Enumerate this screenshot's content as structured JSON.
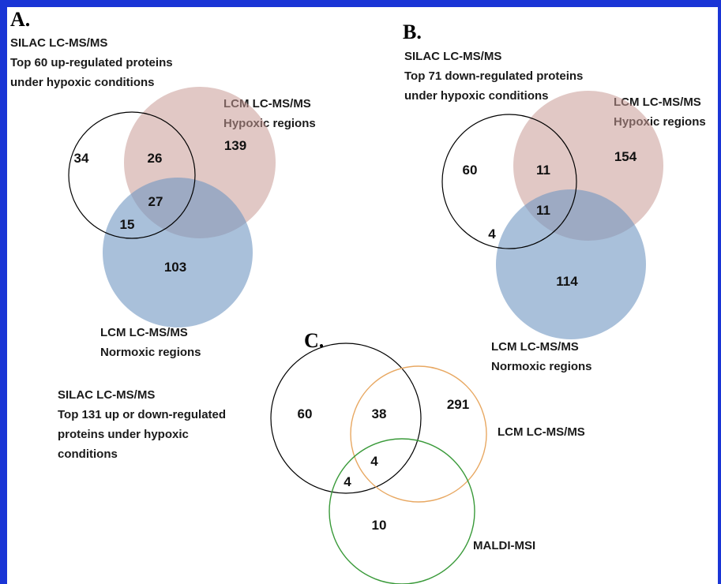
{
  "colors": {
    "frame": "#1a35d6",
    "hypoxic_fill": "#c89a96",
    "normoxic_fill": "#7b9fc4",
    "silac_stroke": "#000000",
    "lcm_stroke_c": "#e8a862",
    "maldi_stroke_c": "#3a9a3a"
  },
  "panel_a": {
    "letter": "A.",
    "silac_label": [
      "SILAC LC-MS/MS",
      "Top 60 up-regulated proteins",
      "under hypoxic conditions"
    ],
    "hypoxic_label": [
      "LCM LC-MS/MS",
      "Hypoxic regions"
    ],
    "normoxic_label": [
      "LCM LC-MS/MS",
      "Normoxic regions"
    ],
    "counts": {
      "silac_only": "34",
      "silac_hypoxic": "26",
      "hypoxic_only": "139",
      "all_three": "27",
      "silac_normoxic": "15",
      "normoxic_only": "103"
    }
  },
  "panel_b": {
    "letter": "B.",
    "silac_label": [
      "SILAC LC-MS/MS",
      "Top 71 down-regulated proteins",
      "under hypoxic conditions"
    ],
    "hypoxic_label": [
      "LCM LC-MS/MS",
      "Hypoxic regions"
    ],
    "normoxic_label": [
      "LCM LC-MS/MS",
      "Normoxic regions"
    ],
    "counts": {
      "silac_only": "60",
      "silac_hypoxic": "11",
      "hypoxic_only": "154",
      "all_three": "11",
      "silac_normoxic": "4",
      "normoxic_only": "114"
    }
  },
  "panel_c": {
    "letter": "C.",
    "silac_label": [
      "SILAC LC-MS/MS",
      "Top 131 up or down-regulated",
      "proteins under hypoxic",
      "conditions"
    ],
    "lcm_label": "LCM LC-MS/MS",
    "maldi_label": "MALDI-MSI",
    "counts": {
      "silac_only": "60",
      "silac_lcm": "38",
      "lcm_only": "291",
      "all_three": "4",
      "silac_maldi": "4",
      "maldi_only": "10"
    }
  }
}
